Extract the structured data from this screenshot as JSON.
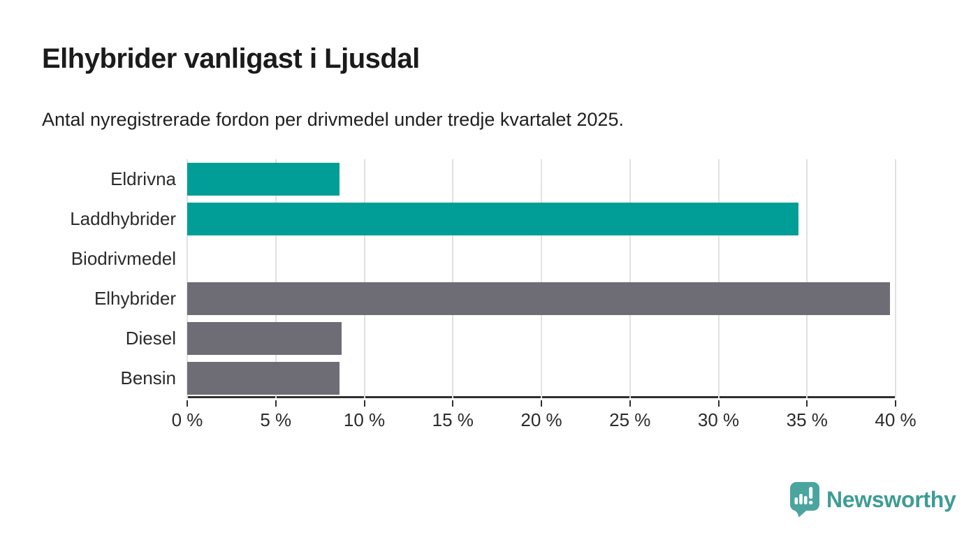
{
  "title": "Elhybrider vanligast i Ljusdal",
  "subtitle": "Antal nyregistrerade fordon per drivmedel under tredje kvartalet 2025.",
  "chart_data": {
    "type": "bar",
    "orientation": "horizontal",
    "title": "Elhybrider vanligast i Ljusdal",
    "subtitle": "Antal nyregistrerade fordon per drivmedel under tredje kvartalet 2025.",
    "categories": [
      "Eldrivna",
      "Laddhybrider",
      "Biodrivmedel",
      "Elhybrider",
      "Diesel",
      "Bensin"
    ],
    "values": [
      8.6,
      34.5,
      0,
      39.7,
      8.7,
      8.6
    ],
    "unit": "%",
    "bar_colors": [
      "#009e96",
      "#009e96",
      "#009e96",
      "#6e6d76",
      "#6e6d76",
      "#6e6d76"
    ],
    "xlim": [
      0,
      40
    ],
    "x_tick_values": [
      0,
      5,
      10,
      15,
      20,
      25,
      30,
      35,
      40
    ],
    "x_tick_labels": [
      "0 %",
      "5 %",
      "10 %",
      "15 %",
      "20 %",
      "25 %",
      "30 %",
      "35 %",
      "40 %"
    ],
    "grid": true,
    "legend": "none"
  },
  "colors": {
    "accent_teal": "#009e96",
    "neutral_gray": "#6e6d76",
    "gridline": "#e1e1e1",
    "axis": "#303030",
    "text": "#1b1b1b",
    "logo_teal": "#3e9c96",
    "logo_icon_teal": "#4ba59f"
  },
  "branding": {
    "logo_text": "Newsworthy"
  }
}
